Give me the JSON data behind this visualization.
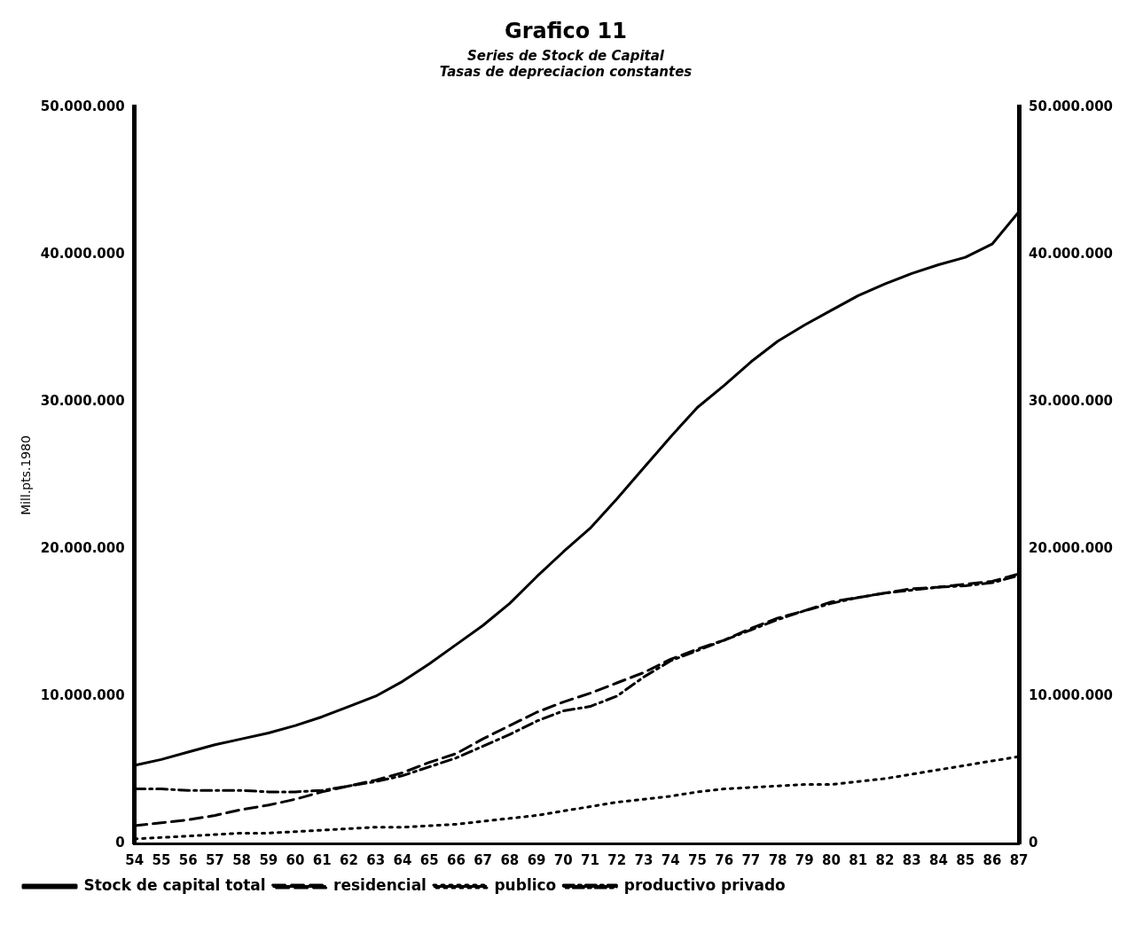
{
  "chart_data": {
    "type": "line",
    "title": "Grafico 11",
    "subtitle": "Series de Stock de Capital\nTasas de depreciacion constantes",
    "ylabel": "Mill.pts.1980",
    "categories": [
      "54",
      "55",
      "56",
      "57",
      "58",
      "59",
      "60",
      "61",
      "62",
      "63",
      "64",
      "65",
      "66",
      "67",
      "68",
      "69",
      "70",
      "71",
      "72",
      "73",
      "74",
      "75",
      "76",
      "77",
      "78",
      "79",
      "80",
      "81",
      "82",
      "83",
      "84",
      "85",
      "86",
      "87"
    ],
    "series": [
      {
        "name": "Stock de capital total",
        "color": "#000000",
        "line_style": "solid",
        "values": [
          5300000,
          5700000,
          6200000,
          6700000,
          7100000,
          7500000,
          8000000,
          8600000,
          9300000,
          10000000,
          11000000,
          12200000,
          13500000,
          14800000,
          16300000,
          18100000,
          19800000,
          21400000,
          23400000,
          25500000,
          27600000,
          29600000,
          31100000,
          32700000,
          34100000,
          35200000,
          36200000,
          37200000,
          38000000,
          38700000,
          39300000,
          39800000,
          40700000,
          42900000
        ]
      },
      {
        "name": "residencial",
        "color": "#000000",
        "line_style": "dashed",
        "values": [
          1200000,
          1400000,
          1600000,
          1900000,
          2300000,
          2600000,
          3000000,
          3500000,
          3900000,
          4300000,
          4800000,
          5500000,
          6100000,
          7100000,
          8000000,
          8900000,
          9600000,
          10200000,
          10900000,
          11600000,
          12500000,
          13200000,
          13800000,
          14600000,
          15300000,
          15800000,
          16400000,
          16700000,
          17000000,
          17300000,
          17400000,
          17600000,
          17800000,
          18300000
        ]
      },
      {
        "name": "publico",
        "color": "#000000",
        "line_style": "dotted",
        "values": [
          300000,
          400000,
          500000,
          600000,
          700000,
          700000,
          800000,
          900000,
          1000000,
          1100000,
          1100000,
          1200000,
          1300000,
          1500000,
          1700000,
          1900000,
          2200000,
          2500000,
          2800000,
          3000000,
          3200000,
          3500000,
          3700000,
          3800000,
          3900000,
          4000000,
          4000000,
          4200000,
          4400000,
          4700000,
          5000000,
          5300000,
          5600000,
          5900000
        ]
      },
      {
        "name": "productivo privado",
        "color": "#000000",
        "line_style": "dashdot",
        "values": [
          3700000,
          3700000,
          3600000,
          3600000,
          3600000,
          3500000,
          3500000,
          3600000,
          3900000,
          4200000,
          4600000,
          5200000,
          5800000,
          6600000,
          7400000,
          8300000,
          9000000,
          9300000,
          10000000,
          11300000,
          12400000,
          13100000,
          13800000,
          14500000,
          15200000,
          15800000,
          16300000,
          16700000,
          17000000,
          17200000,
          17400000,
          17500000,
          17700000,
          18200000
        ]
      }
    ],
    "ylim": [
      0,
      50000000
    ],
    "yticks": [
      {
        "value": 0,
        "label": "0"
      },
      {
        "value": 10000000,
        "label": "10.000.000"
      },
      {
        "value": 20000000,
        "label": "20.000.000"
      },
      {
        "value": 30000000,
        "label": "30.000.000"
      },
      {
        "value": 40000000,
        "label": "40.000.000"
      },
      {
        "value": 50000000,
        "label": "50.000.000"
      }
    ],
    "y2lim": [
      0,
      50000000
    ],
    "y2ticks": [
      {
        "value": 0,
        "label": "0"
      },
      {
        "value": 10000000,
        "label": "10.000.000"
      },
      {
        "value": 20000000,
        "label": "20.000.000"
      },
      {
        "value": 30000000,
        "label": "30.000.000"
      },
      {
        "value": 40000000,
        "label": "40.000.000"
      },
      {
        "value": 50000000,
        "label": "50.000.000"
      }
    ],
    "grid": false,
    "legend": "bottom left",
    "marker": "none"
  }
}
